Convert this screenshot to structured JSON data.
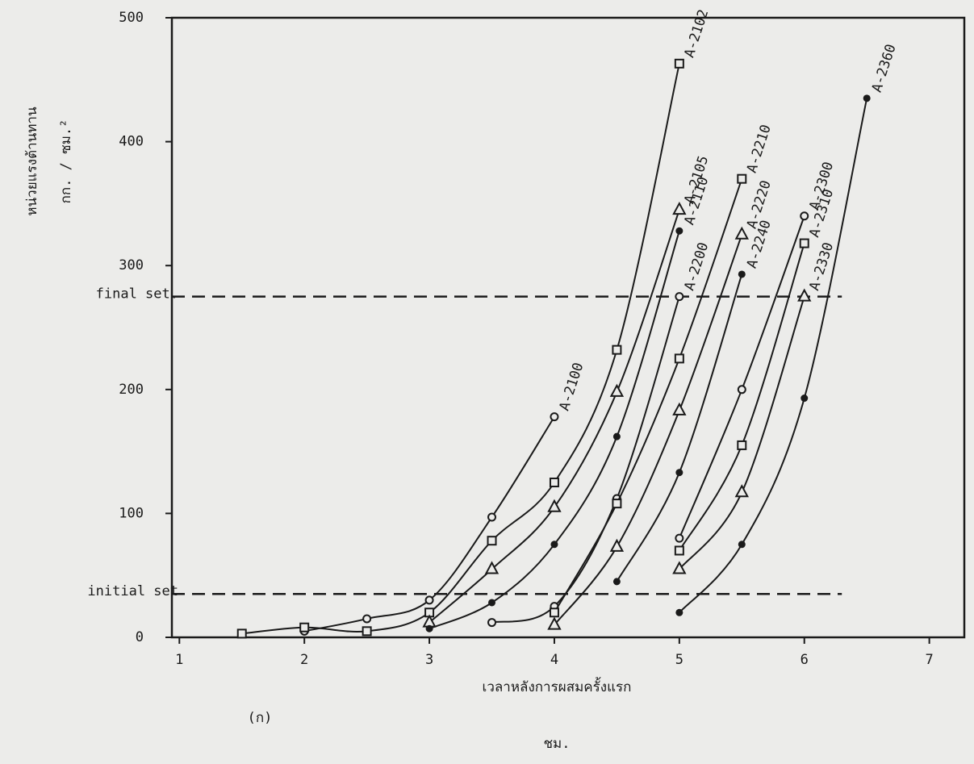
{
  "chart_data": {
    "type": "scatter",
    "ylabel": "หน่วยแรงต้านทาน",
    "ylabel_unit": "กก. / ซม.²",
    "xlabel": "เวลาหลังการผสมครั้งแรก",
    "xlabel_unit": "ชม.",
    "panel_label": "(ก)",
    "xlim": [
      0.94,
      7.28
    ],
    "ylim": [
      0,
      500
    ],
    "xticks": [
      1,
      2,
      3,
      4,
      5,
      6,
      7
    ],
    "yticks": [
      0,
      100,
      200,
      300,
      400,
      500
    ],
    "reference_lines": [
      {
        "label": "final set.",
        "value": 275
      },
      {
        "label": "initial set",
        "value": 35
      }
    ],
    "color": "#1a1a1a",
    "series": [
      {
        "name": "A-2100",
        "marker": "circle",
        "x": [
          2,
          2.5,
          3,
          3.5,
          4
        ],
        "values": [
          5,
          15,
          30,
          97,
          178
        ]
      },
      {
        "name": "A-2102",
        "marker": "square",
        "x": [
          1.5,
          2,
          2.5,
          3,
          3.5,
          4,
          4.5,
          5
        ],
        "values": [
          3,
          8,
          5,
          20,
          78,
          125,
          232,
          463
        ]
      },
      {
        "name": "A-2105",
        "marker": "triangle",
        "x": [
          3,
          3.5,
          4,
          4.5,
          5
        ],
        "values": [
          12,
          55,
          105,
          198,
          345
        ]
      },
      {
        "name": "A-2110",
        "marker": "dot",
        "x": [
          3,
          3.5,
          4,
          4.5,
          5
        ],
        "values": [
          7,
          28,
          75,
          162,
          328
        ]
      },
      {
        "name": "A-2200",
        "marker": "circle",
        "x": [
          3.5,
          4,
          4.5,
          5
        ],
        "values": [
          12,
          25,
          112,
          275
        ]
      },
      {
        "name": "A-2210",
        "marker": "square",
        "x": [
          4,
          4.5,
          5,
          5.5
        ],
        "values": [
          20,
          108,
          225,
          370
        ]
      },
      {
        "name": "A-2220",
        "marker": "triangle",
        "x": [
          4,
          4.5,
          5,
          5.5
        ],
        "values": [
          10,
          73,
          183,
          325
        ]
      },
      {
        "name": "A-2240",
        "marker": "dot",
        "x": [
          4.5,
          5,
          5.5
        ],
        "values": [
          45,
          133,
          293
        ]
      },
      {
        "name": "A-2300",
        "marker": "circle",
        "x": [
          5,
          5.5,
          6
        ],
        "values": [
          80,
          200,
          340
        ]
      },
      {
        "name": "A-2310",
        "marker": "square",
        "x": [
          5,
          5.5,
          6
        ],
        "values": [
          70,
          155,
          318
        ]
      },
      {
        "name": "A-2330",
        "marker": "triangle",
        "x": [
          5,
          5.5,
          6
        ],
        "values": [
          55,
          117,
          275
        ]
      },
      {
        "name": "A-2360",
        "marker": "dot",
        "x": [
          5,
          5.5,
          6,
          6.5
        ],
        "values": [
          20,
          75,
          193,
          435
        ]
      }
    ]
  }
}
